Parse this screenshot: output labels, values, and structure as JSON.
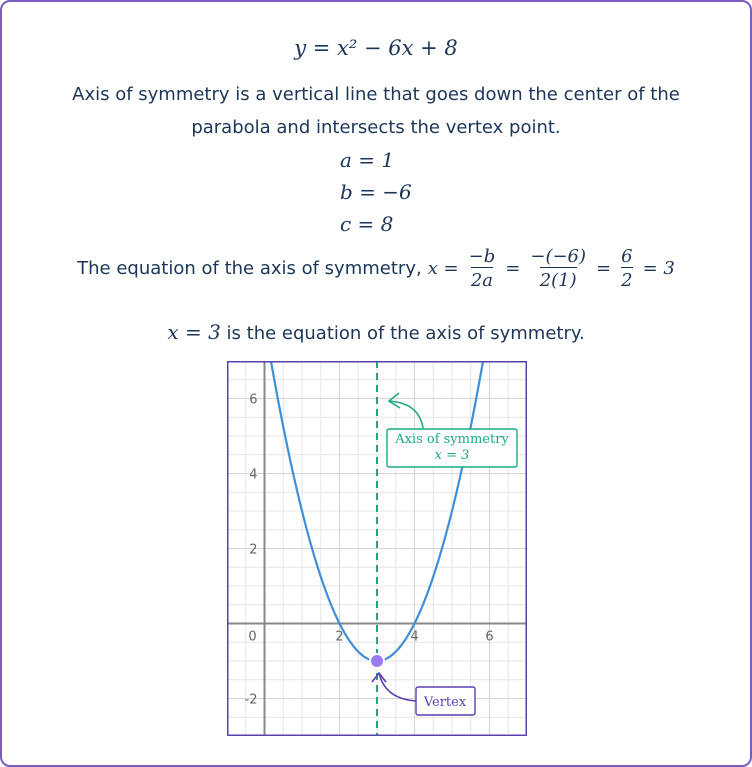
{
  "equation": "y = x² − 6x + 8",
  "paragraph": "Axis of symmetry is a vertical line that goes down the center of the parabola and intersects the vertex point.",
  "coefficients": [
    {
      "label": "a = 1",
      "value": 1
    },
    {
      "label": "b = −6",
      "value": -6
    },
    {
      "label": "c = 8",
      "value": 8
    }
  ],
  "formula_line": {
    "lead": "The equation of the axis of symmetry,",
    "lhs": "x =",
    "fractions": [
      {
        "num": "−b",
        "den": "2a"
      },
      {
        "num": "−(−6)",
        "den": "2(1)"
      },
      {
        "num": "6",
        "den": "2"
      }
    ],
    "equals": "=",
    "result": "= 3"
  },
  "conclusion": {
    "math": "x = 3",
    "text": "is the equation of the axis of symmetry."
  },
  "graph": {
    "xlim": [
      -1,
      7
    ],
    "ylim": [
      -3,
      7
    ],
    "xticks": [
      0,
      2,
      4,
      6
    ],
    "yticks": [
      -2,
      2,
      4,
      6
    ],
    "axis_of_symmetry": 3,
    "vertex": {
      "x": 3,
      "y": -1
    },
    "annotations": {
      "axis_title": "Axis of symmetry",
      "axis_eq": "x = 3",
      "vertex": "Vertex"
    }
  }
}
